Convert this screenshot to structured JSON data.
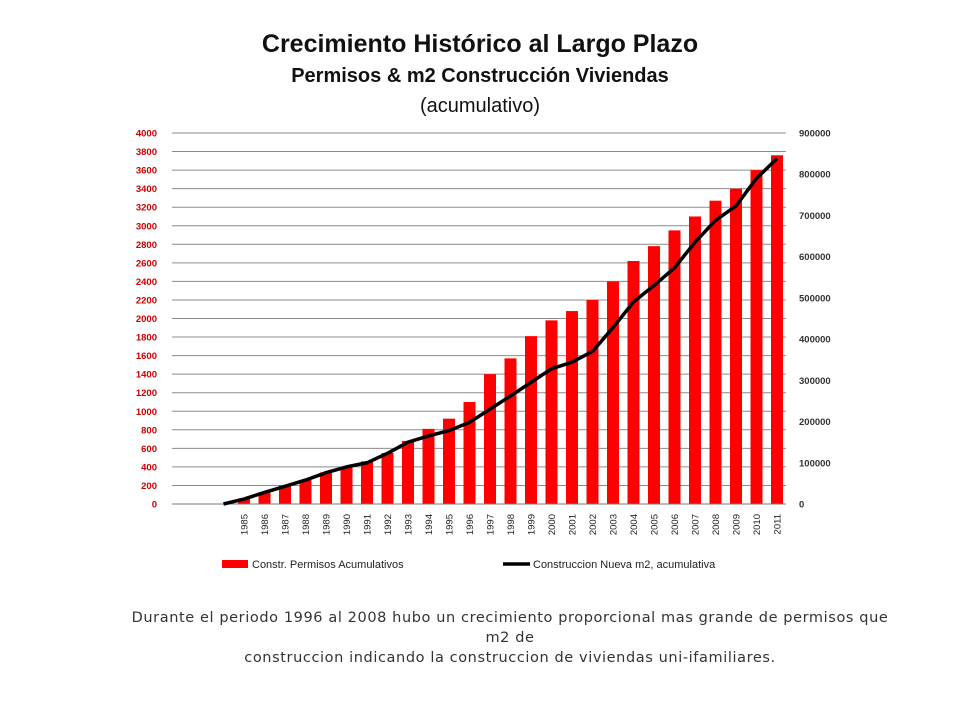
{
  "chart_data": {
    "type": "bar+line",
    "title": "Crecimiento Histórico al Largo Plazo",
    "subtitle": "Permisos & m2 Construcción Viviendas",
    "subtitle2": "(acumulativo)",
    "categories": [
      "1985",
      "1986",
      "1987",
      "1988",
      "1989",
      "1990",
      "1991",
      "1992",
      "1993",
      "1994",
      "1995",
      "1996",
      "1997",
      "1998",
      "1999",
      "2000",
      "2001",
      "2002",
      "2003",
      "2004",
      "2005",
      "2006",
      "2007",
      "2008",
      "2009",
      "2010",
      "2011"
    ],
    "series": [
      {
        "name": "Constr. Permisos Acumulativos",
        "type": "bar",
        "axis": "left",
        "color": "#ff0000",
        "values": [
          60,
          130,
          200,
          260,
          340,
          400,
          460,
          550,
          680,
          810,
          920,
          1100,
          1400,
          1570,
          1810,
          1980,
          2080,
          2200,
          2400,
          2620,
          2780,
          2950,
          3100,
          3270,
          3400,
          3600,
          3760
        ]
      },
      {
        "name": "Construccion Nueva m2, acumulativa",
        "type": "line",
        "axis": "right",
        "color": "#000000",
        "values": [
          12000,
          28000,
          43000,
          58000,
          76000,
          90000,
          100000,
          123000,
          150000,
          165000,
          178000,
          198000,
          230000,
          262000,
          295000,
          328000,
          344000,
          370000,
          428000,
          490000,
          530000,
          573000,
          635000,
          688000,
          723000,
          790000,
          838000
        ]
      }
    ],
    "y_left": {
      "min": 0,
      "max": 4000,
      "step": 200,
      "ticks": [
        "0",
        "200",
        "400",
        "600",
        "800",
        "1000",
        "1200",
        "1400",
        "1600",
        "1800",
        "2000",
        "2200",
        "2400",
        "2600",
        "2800",
        "3000",
        "3200",
        "3400",
        "3600",
        "3800",
        "4000"
      ],
      "tick_color": "#cc0000"
    },
    "y_right": {
      "min": 0,
      "max": 900000,
      "step": 100000,
      "ticks": [
        "0",
        "100000",
        "200000",
        "300000",
        "400000",
        "500000",
        "600000",
        "700000",
        "800000",
        "900000"
      ]
    },
    "line_start": {
      "value": 0,
      "note": "line begins at zero one category before 1985"
    },
    "grid": true,
    "legend_position": "bottom"
  },
  "note": {
    "line1": "Durante el periodo 1996 al 2008 hubo un crecimiento proporcional mas grande de permisos que m2 de",
    "line2": "construccion indicando la construccion de viviendas uni-ifamiliares."
  }
}
